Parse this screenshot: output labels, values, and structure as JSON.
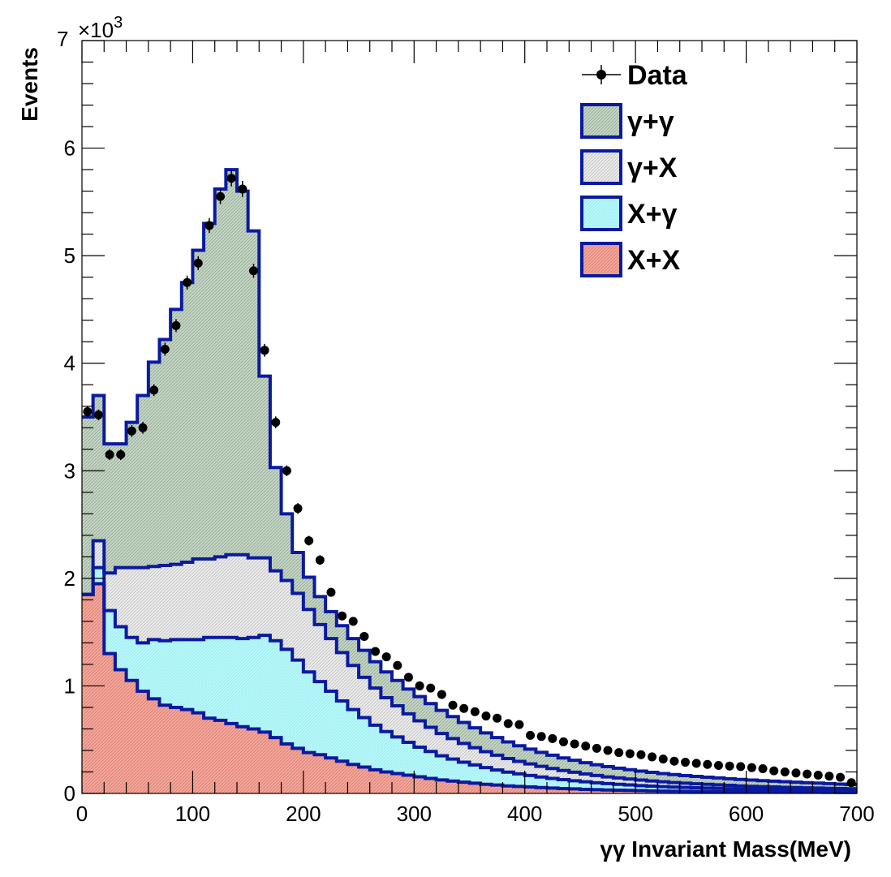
{
  "chart_data": {
    "type": "stacked-histogram",
    "xlabel": "γγ Invariant Mass(MeV)",
    "ylabel": "Events",
    "y_multiplier": "×10",
    "y_multiplier_exp": "3",
    "xlim": [
      0,
      700
    ],
    "ylim": [
      0,
      7000
    ],
    "x_ticks": [
      0,
      100,
      200,
      300,
      400,
      500,
      600,
      700
    ],
    "y_ticks": [
      0,
      1,
      2,
      3,
      4,
      5,
      6,
      7
    ],
    "bin_width": 10,
    "bin_edges_start": 0,
    "legend_position": "top-right",
    "series": [
      {
        "name": "X+X",
        "color": "#f4a79b",
        "values": [
          1850,
          1950,
          1300,
          1150,
          1050,
          950,
          880,
          820,
          800,
          780,
          750,
          700,
          680,
          650,
          620,
          600,
          570,
          520,
          460,
          420,
          380,
          360,
          330,
          300,
          270,
          245,
          220,
          200,
          185,
          170,
          155,
          140,
          125,
          115,
          105,
          95,
          85,
          78,
          70,
          65,
          60,
          55,
          50,
          45,
          42,
          38,
          35,
          32,
          30,
          28,
          26,
          24,
          22,
          21,
          20,
          19,
          18,
          17,
          16,
          15,
          14,
          13,
          13,
          12,
          12,
          11,
          11,
          10,
          10,
          10
        ]
      },
      {
        "name": "X+γ",
        "color": "#b8f7f9",
        "values": [
          0,
          150,
          400,
          400,
          400,
          450,
          550,
          600,
          630,
          650,
          680,
          750,
          770,
          800,
          820,
          850,
          900,
          900,
          880,
          820,
          750,
          680,
          620,
          560,
          510,
          460,
          415,
          375,
          340,
          305,
          275,
          250,
          225,
          205,
          185,
          170,
          155,
          140,
          128,
          117,
          107,
          98,
          90,
          83,
          76,
          70,
          64,
          59,
          55,
          51,
          47,
          44,
          41,
          38,
          36,
          34,
          32,
          30,
          28,
          26,
          25,
          24,
          23,
          22,
          21,
          20,
          19,
          18,
          17,
          16
        ]
      },
      {
        "name": "γ+X",
        "color": "#e8e8e8",
        "values": [
          0,
          250,
          350,
          550,
          650,
          700,
          680,
          700,
          700,
          720,
          750,
          730,
          750,
          770,
          780,
          740,
          720,
          650,
          640,
          620,
          580,
          530,
          490,
          450,
          410,
          375,
          345,
          315,
          290,
          265,
          245,
          225,
          207,
          190,
          175,
          160,
          148,
          137,
          126,
          116,
          107,
          99,
          92,
          85,
          79,
          73,
          68,
          63,
          59,
          55,
          51,
          48,
          45,
          42,
          39,
          37,
          35,
          33,
          31,
          29,
          27,
          26,
          24,
          23,
          22,
          21,
          20,
          19,
          18,
          17
        ]
      },
      {
        "name": "γ+γ",
        "color": "#c6d6c6",
        "values": [
          1650,
          1350,
          1200,
          1150,
          1350,
          1600,
          1900,
          2100,
          2370,
          2600,
          2870,
          3120,
          3420,
          3580,
          3380,
          3040,
          1690,
          960,
          620,
          380,
          300,
          260,
          250,
          250,
          250,
          250,
          245,
          240,
          235,
          230,
          225,
          220,
          215,
          205,
          195,
          185,
          175,
          165,
          155,
          145,
          138,
          130,
          123,
          117,
          111,
          105,
          100,
          95,
          91,
          87,
          83,
          80,
          77,
          74,
          71,
          68,
          66,
          64,
          62,
          60,
          58,
          56,
          54,
          52,
          50,
          48,
          46,
          44,
          42,
          40
        ]
      }
    ],
    "data_points": {
      "name": "Data",
      "x": [
        5,
        15,
        25,
        35,
        45,
        55,
        65,
        75,
        85,
        95,
        105,
        115,
        125,
        135,
        145,
        155,
        165,
        175,
        185,
        195,
        205,
        215,
        225,
        235,
        245,
        255,
        265,
        275,
        285,
        295,
        305,
        315,
        325,
        335,
        345,
        355,
        365,
        375,
        385,
        395,
        405,
        415,
        425,
        435,
        445,
        455,
        465,
        475,
        485,
        495,
        505,
        515,
        525,
        535,
        545,
        555,
        565,
        575,
        585,
        595,
        605,
        615,
        625,
        635,
        645,
        655,
        665,
        675,
        685,
        695
      ],
      "y": [
        3550,
        3520,
        3150,
        3150,
        3370,
        3400,
        3750,
        4130,
        4350,
        4750,
        4930,
        5280,
        5550,
        5720,
        5620,
        4860,
        4120,
        3450,
        3000,
        2650,
        2350,
        2170,
        1870,
        1650,
        1600,
        1460,
        1320,
        1270,
        1190,
        1080,
        1000,
        980,
        920,
        820,
        790,
        760,
        720,
        700,
        650,
        640,
        540,
        530,
        510,
        480,
        460,
        440,
        420,
        400,
        380,
        370,
        360,
        340,
        320,
        300,
        290,
        280,
        270,
        260,
        255,
        250,
        240,
        230,
        210,
        200,
        190,
        180,
        170,
        160,
        150,
        100
      ],
      "err": [
        50,
        50,
        50,
        50,
        55,
        55,
        55,
        60,
        60,
        65,
        65,
        70,
        70,
        75,
        75,
        65,
        60,
        55,
        50,
        50,
        45,
        45,
        40,
        40,
        40,
        35,
        35,
        35,
        35,
        30,
        30,
        30,
        30,
        28,
        28,
        28,
        26,
        26,
        25,
        25,
        23,
        23,
        22,
        22,
        21,
        21,
        20,
        20,
        19,
        19,
        19,
        18,
        18,
        17,
        17,
        17,
        16,
        16,
        16,
        16,
        15,
        15,
        15,
        14,
        14,
        13,
        13,
        13,
        12,
        10
      ]
    },
    "legend": [
      {
        "label": "Data",
        "kind": "marker"
      },
      {
        "label": "γ+γ",
        "kind": "box",
        "color": "#c6d6c6"
      },
      {
        "label": "γ+X",
        "kind": "box",
        "color": "#e8e8e8"
      },
      {
        "label": "X+γ",
        "kind": "box",
        "color": "#b8f7f9"
      },
      {
        "label": "X+X",
        "kind": "box",
        "color": "#f4a79b"
      }
    ],
    "line_color": "#0a1aa0"
  }
}
